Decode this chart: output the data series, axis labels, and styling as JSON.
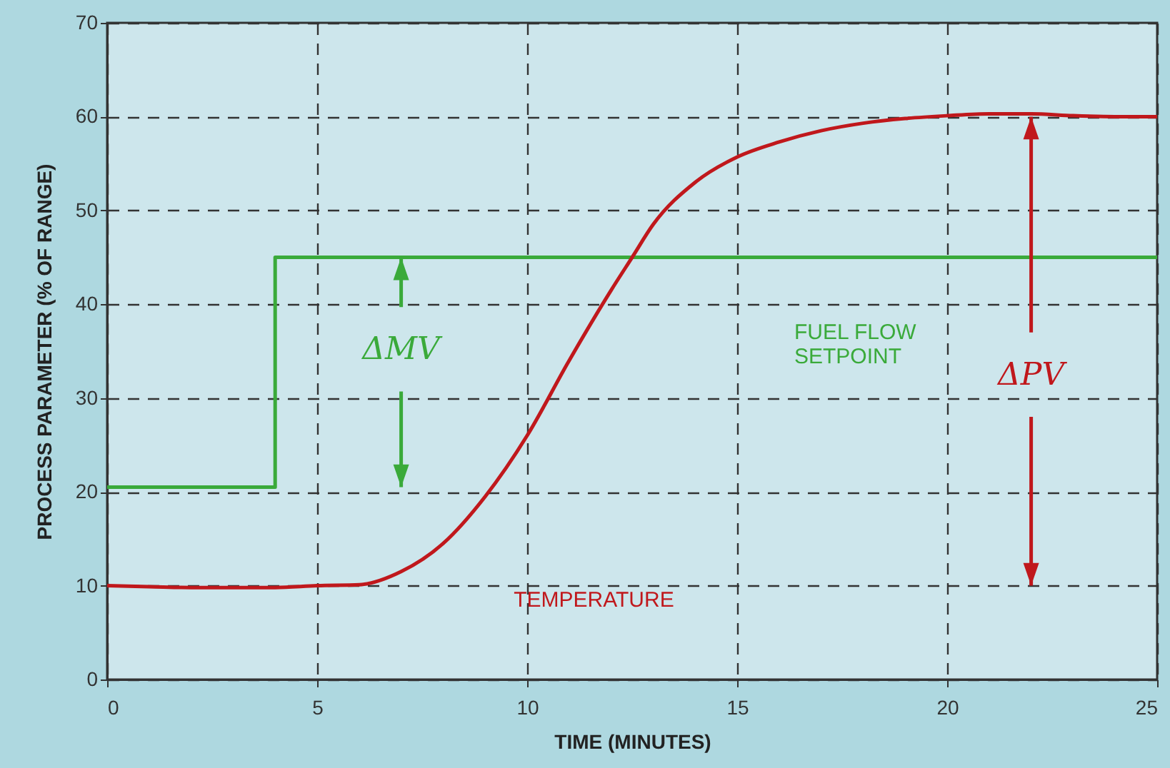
{
  "chart_data": {
    "type": "line",
    "xlabel": "TIME (MINUTES)",
    "ylabel": "PROCESS PARAMETER (% OF RANGE)",
    "xlim": [
      0,
      25
    ],
    "xticks": [
      0,
      5,
      10,
      15,
      20,
      25
    ],
    "ylim": [
      0,
      70
    ],
    "yticks": [
      0,
      10,
      20,
      30,
      40,
      50,
      60,
      70
    ],
    "grid": true,
    "legend": false,
    "series": [
      {
        "name": "FUEL FLOW SETPOINT",
        "type": "step",
        "color": "#3aaa3a",
        "x": [
          0,
          4,
          25
        ],
        "values": [
          20.5,
          45,
          45
        ]
      },
      {
        "name": "TEMPERATURE",
        "color": "#c0181c",
        "x": [
          0,
          1,
          2,
          3,
          4,
          5,
          6,
          7,
          8,
          9,
          10,
          11,
          12,
          12.5,
          13,
          14,
          15,
          16,
          17,
          18,
          19,
          20,
          21,
          22,
          23,
          24,
          25
        ],
        "values": [
          10,
          9.9,
          9.8,
          9.8,
          9.8,
          10,
          10.1,
          11.5,
          14.5,
          19.5,
          26,
          34,
          41.5,
          45,
          48.5,
          53,
          55.7,
          57.3,
          58.5,
          59.3,
          59.8,
          60.1,
          60.3,
          60.3,
          60.1,
          60,
          60
        ]
      }
    ],
    "annotations": [
      {
        "text": "ΔMV",
        "x": 7,
        "y": 45
      },
      {
        "text": "ΔPV",
        "x": 22,
        "y": 60
      }
    ]
  }
}
